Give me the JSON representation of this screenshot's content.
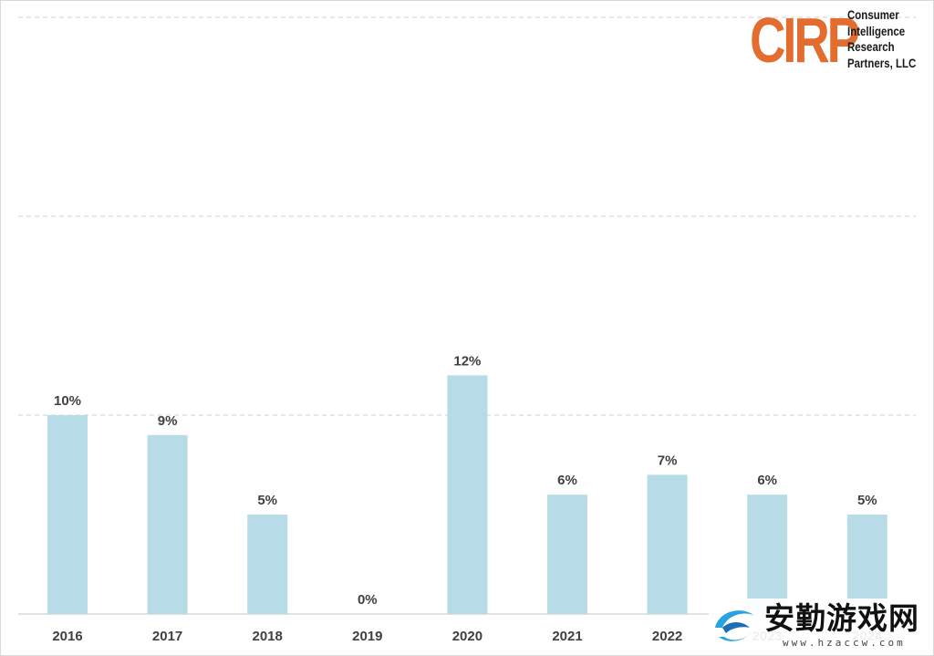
{
  "chart_data": {
    "type": "bar",
    "categories": [
      "2016",
      "2017",
      "2018",
      "2019",
      "2020",
      "2021",
      "2022",
      "2023",
      "2024"
    ],
    "values": [
      10,
      9,
      5,
      0,
      12,
      6,
      7,
      6,
      5
    ],
    "value_labels": [
      "10%",
      "9%",
      "5%",
      "0%",
      "12%",
      "6%",
      "7%",
      "6%",
      "5%"
    ],
    "title": "",
    "xlabel": "",
    "ylabel": "",
    "ylim": [
      0,
      40
    ],
    "gridlines": [
      10,
      20,
      30
    ],
    "grid": true,
    "bar_color": "#b7dce7",
    "label_color": "#404040",
    "gridline_color": "#cfcfcf",
    "axis_color": "#d9d9d9"
  },
  "logo": {
    "mark": "CIRP",
    "lines": [
      "Consumer",
      "Intelligence",
      "Research",
      "Partners, LLC"
    ],
    "mark_color": "#e36c2f"
  },
  "watermark": {
    "title": "安勤游戏网",
    "url": "www.hzaccw.com",
    "icon": "swoosh-logo-icon"
  }
}
